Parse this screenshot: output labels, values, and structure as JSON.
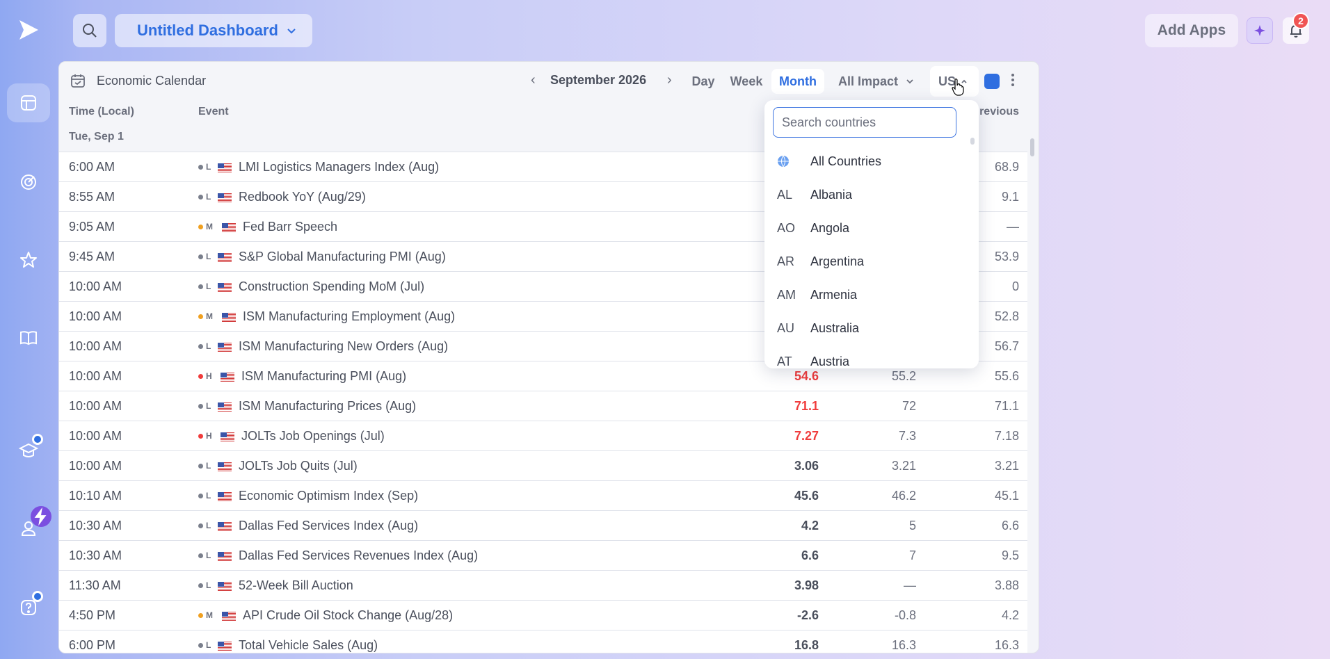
{
  "topbar": {
    "dashboard_title": "Untitled Dashboard",
    "add_apps_label": "Add Apps",
    "notification_count": "2"
  },
  "widget": {
    "title": "Economic Calendar",
    "month": "September 2026",
    "views": [
      "Day",
      "Week",
      "Month"
    ],
    "active_view": "Month",
    "impact_filter": "All Impact",
    "country_filter": "US",
    "accent_color": "#2f6ee0",
    "columns": {
      "time": "Time (Local)",
      "event": "Event",
      "previous": "revious"
    },
    "day_header": "Tue, Sep 1",
    "rows": [
      {
        "time": "6:00 AM",
        "impact": "L",
        "event": "LMI Logistics Managers Index (Aug)",
        "actual": "",
        "forecast": "",
        "previous": "68.9"
      },
      {
        "time": "8:55 AM",
        "impact": "L",
        "event": "Redbook YoY (Aug/29)",
        "actual": "",
        "forecast": "",
        "previous": "9.1"
      },
      {
        "time": "9:05 AM",
        "impact": "M",
        "event": "Fed Barr Speech",
        "actual": "",
        "forecast": "",
        "previous": "—"
      },
      {
        "time": "9:45 AM",
        "impact": "L",
        "event": "S&P Global Manufacturing PMI (Aug)",
        "actual": "",
        "forecast": "",
        "previous": "53.9"
      },
      {
        "time": "10:00 AM",
        "impact": "L",
        "event": "Construction Spending MoM (Jul)",
        "actual": "",
        "forecast": "",
        "previous": "0"
      },
      {
        "time": "10:00 AM",
        "impact": "M",
        "event": "ISM Manufacturing Employment (Aug)",
        "actual": "",
        "forecast": "",
        "previous": "52.8"
      },
      {
        "time": "10:00 AM",
        "impact": "L",
        "event": "ISM Manufacturing New Orders (Aug)",
        "actual": "",
        "forecast": "",
        "previous": "56.7"
      },
      {
        "time": "10:00 AM",
        "impact": "H",
        "event": "ISM Manufacturing PMI (Aug)",
        "actual": "54.6",
        "actual_red": true,
        "forecast": "55.2",
        "previous": "55.6"
      },
      {
        "time": "10:00 AM",
        "impact": "L",
        "event": "ISM Manufacturing Prices (Aug)",
        "actual": "71.1",
        "actual_red": true,
        "forecast": "72",
        "previous": "71.1"
      },
      {
        "time": "10:00 AM",
        "impact": "H",
        "event": "JOLTs Job Openings (Jul)",
        "actual": "7.27",
        "actual_red": true,
        "forecast": "7.3",
        "previous": "7.18"
      },
      {
        "time": "10:00 AM",
        "impact": "L",
        "event": "JOLTs Job Quits (Jul)",
        "actual": "3.06",
        "forecast": "3.21",
        "previous": "3.21"
      },
      {
        "time": "10:10 AM",
        "impact": "L",
        "event": "Economic Optimism Index (Sep)",
        "actual": "45.6",
        "forecast": "46.2",
        "previous": "45.1"
      },
      {
        "time": "10:30 AM",
        "impact": "L",
        "event": "Dallas Fed Services Index (Aug)",
        "actual": "4.2",
        "forecast": "5",
        "previous": "6.6"
      },
      {
        "time": "10:30 AM",
        "impact": "L",
        "event": "Dallas Fed Services Revenues Index (Aug)",
        "actual": "6.6",
        "forecast": "7",
        "previous": "9.5"
      },
      {
        "time": "11:30 AM",
        "impact": "L",
        "event": "52-Week Bill Auction",
        "actual": "3.98",
        "forecast": "—",
        "previous": "3.88"
      },
      {
        "time": "4:50 PM",
        "impact": "M",
        "event": "API Crude Oil Stock Change (Aug/28)",
        "actual": "-2.6",
        "forecast": "-0.8",
        "previous": "4.2"
      },
      {
        "time": "6:00 PM",
        "impact": "L",
        "event": "Total Vehicle Sales (Aug)",
        "actual": "16.8",
        "forecast": "16.3",
        "previous": "16.3"
      }
    ],
    "impact_colors": {
      "L": "#7a7f8c",
      "M": "#f0a020",
      "H": "#f03c3c"
    }
  },
  "country_dropdown": {
    "search_placeholder": "Search countries",
    "items": [
      {
        "code": "",
        "name": "All Countries",
        "icon": "globe-icon"
      },
      {
        "code": "AL",
        "name": "Albania"
      },
      {
        "code": "AO",
        "name": "Angola"
      },
      {
        "code": "AR",
        "name": "Argentina"
      },
      {
        "code": "AM",
        "name": "Armenia"
      },
      {
        "code": "AU",
        "name": "Australia"
      },
      {
        "code": "AT",
        "name": "Austria"
      }
    ]
  }
}
